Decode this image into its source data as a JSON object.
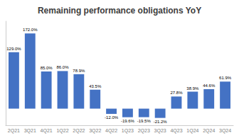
{
  "chart_data": {
    "type": "bar",
    "title": "Remaining performance obligations YoY",
    "categories": [
      "2Q21",
      "3Q21",
      "4Q21",
      "1Q22",
      "2Q22",
      "3Q22",
      "4Q22",
      "1Q23",
      "2Q23",
      "3Q23",
      "4Q23",
      "1Q24",
      "2Q24",
      "3Q24"
    ],
    "values": [
      129.0,
      172.0,
      85.0,
      86.0,
      78.9,
      43.5,
      -12.0,
      -19.6,
      -19.5,
      -21.2,
      27.8,
      38.9,
      44.6,
      61.9
    ],
    "value_labels": [
      "129.0%",
      "172.0%",
      "85.0%",
      "86.0%",
      "78.9%",
      "43.5%",
      "-12.0%",
      "-19.6%",
      "-19.5%",
      "-21.2%",
      "27.8%",
      "38.9%",
      "44.6%",
      "61.9%"
    ],
    "color": "#4472C4",
    "ylim": [
      -38,
      200
    ],
    "grid": false,
    "data_labels": true,
    "tick_labels": "x"
  }
}
